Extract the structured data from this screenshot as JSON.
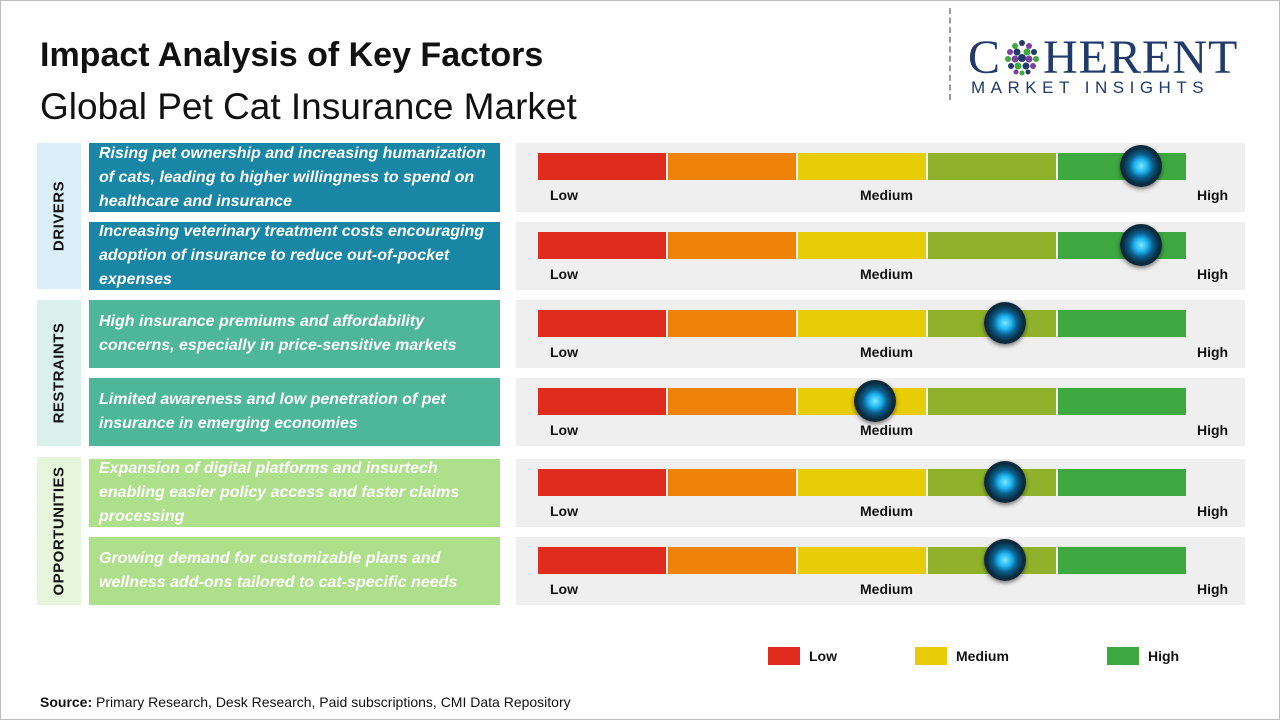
{
  "title": "Impact Analysis of Key Factors",
  "subtitle": "Global Pet Cat Insurance Market",
  "logo": {
    "main_text": "COHERENT",
    "sub_text": "MARKET INSIGHTS",
    "color": "#1f3a6b"
  },
  "source": {
    "label": "Source:",
    "text": "Primary Research, Desk Research, Paid subscriptions, CMI Data Repository"
  },
  "scale_labels": {
    "low": "Low",
    "medium": "Medium",
    "high": "High"
  },
  "segment_colors": [
    "#e02b1f",
    "#ef8209",
    "#e8cc07",
    "#8fb22a",
    "#3da83f"
  ],
  "categories": [
    {
      "name": "DRIVERS",
      "panel_color": "#daeef7",
      "box_color": "#1a86a6"
    },
    {
      "name": "RESTRAINTS",
      "panel_color": "#d9f1ea",
      "box_color": "#4fb799"
    },
    {
      "name": "OPPORTUNITIES",
      "panel_color": "#e6f6dc",
      "box_color": "#aedf8a"
    }
  ],
  "legend": [
    {
      "label": "Low",
      "color": "#e02b1f"
    },
    {
      "label": "Medium",
      "color": "#e8cc07"
    },
    {
      "label": "High",
      "color": "#3da83f"
    }
  ],
  "chart_data": {
    "type": "gauge",
    "scale": [
      "Low",
      "Medium",
      "High"
    ],
    "value_range": [
      0,
      1
    ],
    "factors": [
      {
        "category": "DRIVERS",
        "text": "Rising pet ownership and increasing humanization of cats, leading to higher willingness to spend on healthcare and insurance",
        "impact": 0.93,
        "impact_level": "High"
      },
      {
        "category": "DRIVERS",
        "text": "Increasing veterinary treatment costs encouraging adoption of insurance to reduce out-of-pocket expenses",
        "impact": 0.93,
        "impact_level": "High"
      },
      {
        "category": "RESTRAINTS",
        "text": "High insurance premiums and affordability concerns, especially in price-sensitive markets",
        "impact": 0.72,
        "impact_level": "Medium-High"
      },
      {
        "category": "RESTRAINTS",
        "text": "Limited awareness and low penetration of pet insurance in emerging economies",
        "impact": 0.52,
        "impact_level": "Medium"
      },
      {
        "category": "OPPORTUNITIES",
        "text": "Expansion of digital platforms and insurtech enabling easier policy access and faster claims processing",
        "impact": 0.72,
        "impact_level": "Medium-High"
      },
      {
        "category": "OPPORTUNITIES",
        "text": "Growing demand for customizable plans and wellness add-ons tailored to cat-specific needs",
        "impact": 0.72,
        "impact_level": "Medium-High"
      }
    ]
  }
}
